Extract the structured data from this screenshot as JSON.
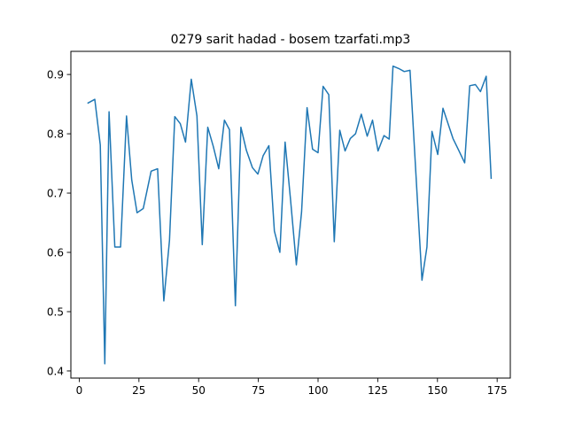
{
  "chart_data": {
    "type": "line",
    "title": "0279 sarit hadad - bosem tzarfati.mp3",
    "xlabel": "",
    "ylabel": "",
    "xlim": [
      -3.5,
      180.5
    ],
    "ylim": [
      0.388,
      0.939
    ],
    "xticks": [
      0,
      25,
      50,
      75,
      100,
      125,
      150,
      175
    ],
    "yticks": [
      0.4,
      0.5,
      0.6,
      0.7,
      0.8,
      0.9
    ],
    "grid": false,
    "color": "#1f77b4",
    "series": [
      {
        "x": [
          3.7,
          6.5,
          8.8,
          10.7,
          12.5,
          14.9,
          17.3,
          19.8,
          22.0,
          24.2,
          26.8,
          30.1,
          32.8,
          35.4,
          37.8,
          40.0,
          42.3,
          44.5,
          46.9,
          49.3,
          51.5,
          53.8,
          56.1,
          58.4,
          60.8,
          62.9,
          65.4,
          67.7,
          70.0,
          72.5,
          74.8,
          77.0,
          79.4,
          81.7,
          84.0,
          86.2,
          88.5,
          90.9,
          93.1,
          95.4,
          97.7,
          100.0,
          102.1,
          104.5,
          106.8,
          109.1,
          111.3,
          113.5,
          115.7,
          118.1,
          120.6,
          122.8,
          125.1,
          127.6,
          129.8,
          131.4,
          133.8,
          136.1,
          138.5,
          143.5,
          145.6,
          147.7,
          150.1,
          152.3,
          156.5,
          158.8,
          161.4,
          163.5,
          165.9,
          168.0,
          170.4,
          172.5
        ],
        "y": [
          0.852,
          0.858,
          0.781,
          0.412,
          0.837,
          0.609,
          0.609,
          0.83,
          0.722,
          0.667,
          0.674,
          0.737,
          0.741,
          0.518,
          0.62,
          0.829,
          0.817,
          0.786,
          0.892,
          0.83,
          0.613,
          0.811,
          0.779,
          0.741,
          0.823,
          0.807,
          0.51,
          0.811,
          0.772,
          0.743,
          0.732,
          0.763,
          0.78,
          0.636,
          0.6,
          0.786,
          0.688,
          0.579,
          0.668,
          0.844,
          0.774,
          0.768,
          0.88,
          0.866,
          0.618,
          0.806,
          0.771,
          0.792,
          0.8,
          0.833,
          0.796,
          0.823,
          0.771,
          0.797,
          0.791,
          0.914,
          0.91,
          0.905,
          0.907,
          0.553,
          0.609,
          0.804,
          0.765,
          0.843,
          0.792,
          0.773,
          0.751,
          0.881,
          0.883,
          0.871,
          0.897,
          0.725
        ]
      }
    ]
  }
}
